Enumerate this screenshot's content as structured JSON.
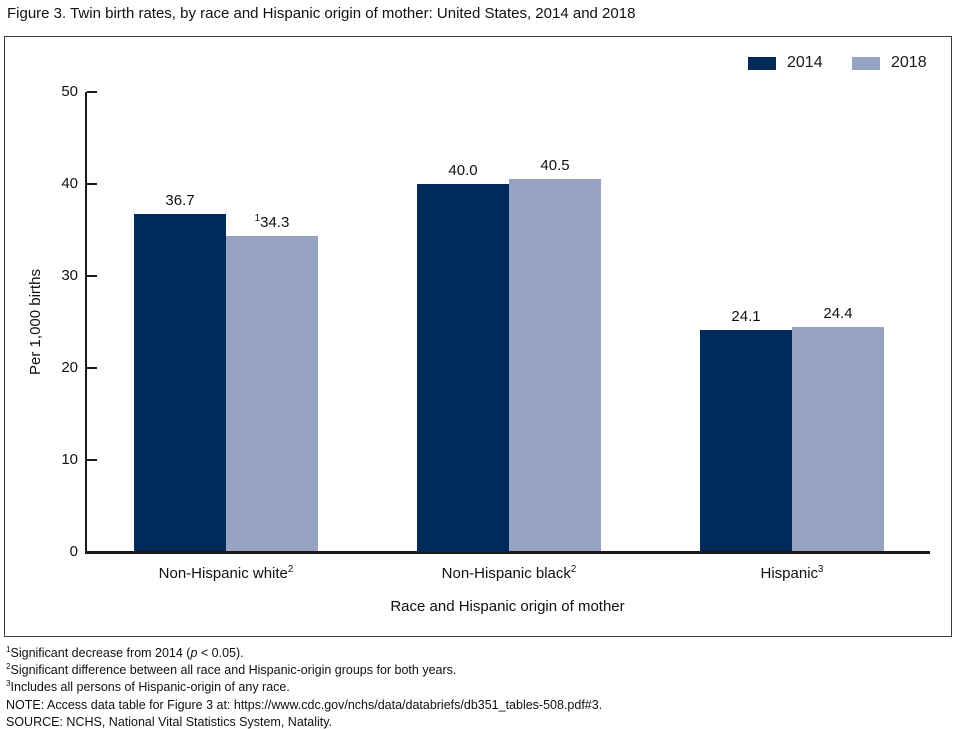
{
  "figure": {
    "title": "Figure 3. Twin birth rates, by race and Hispanic origin of mother: United States, 2014 and 2018"
  },
  "chart_data": {
    "type": "bar",
    "title": "Figure 3. Twin birth rates, by race and Hispanic origin of mother: United States, 2014 and 2018",
    "categories": [
      "Non-Hispanic white",
      "Non-Hispanic black",
      "Hispanic"
    ],
    "category_footnote_marks": [
      "2",
      "2",
      "3"
    ],
    "series": [
      {
        "name": "2014",
        "color": "#002a59",
        "values": [
          36.7,
          40.0,
          24.1
        ],
        "value_labels": [
          "36.7",
          "40.0",
          "24.1"
        ],
        "value_label_footnote_marks": [
          "",
          "",
          ""
        ]
      },
      {
        "name": "2018",
        "color": "#97a3c2",
        "values": [
          34.3,
          40.5,
          24.4
        ],
        "value_labels": [
          "34.3",
          "40.5",
          "24.4"
        ],
        "value_label_footnote_marks": [
          "1",
          "",
          ""
        ]
      }
    ],
    "xlabel": "Race and Hispanic origin of mother",
    "ylabel": "Per 1,000 births",
    "ylim": [
      0,
      50
    ],
    "yticks": [
      0,
      10,
      20,
      30,
      40,
      50
    ],
    "grid": false,
    "legend_position": "top-right"
  },
  "footnotes": [
    {
      "sup": "1",
      "pre": "Significant decrease from 2014 (",
      "italic": "p",
      "post": " < 0.05)."
    },
    {
      "sup": "2",
      "pre": "Significant difference between all race and Hispanic-origin groups for both years.",
      "italic": "",
      "post": ""
    },
    {
      "sup": "3",
      "pre": "Includes all persons of Hispanic-origin of any race.",
      "italic": "",
      "post": ""
    },
    {
      "sup": "",
      "pre": "NOTE: Access data table for Figure 3 at: https://www.cdc.gov/nchs/data/databriefs/db351_tables-508.pdf#3.",
      "italic": "",
      "post": ""
    },
    {
      "sup": "",
      "pre": "SOURCE: NCHS, National Vital Statistics System, Natality.",
      "italic": "",
      "post": ""
    }
  ]
}
